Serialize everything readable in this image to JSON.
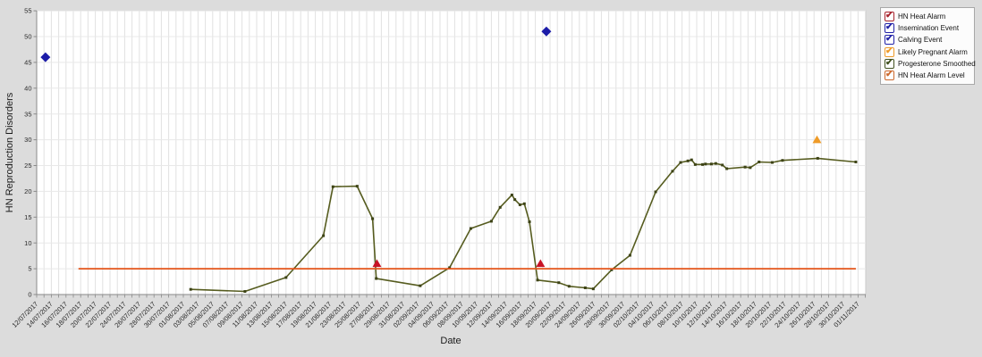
{
  "window": {
    "background": "#dcdcdc",
    "plot_background": "#ffffff"
  },
  "legend": {
    "items": [
      {
        "label": "HN Heat Alarm",
        "checked": true,
        "color": "#a8242e"
      },
      {
        "label": "Insemination Event",
        "checked": true,
        "color": "#2323a8"
      },
      {
        "label": "Calving Event",
        "checked": true,
        "color": "#2323a8"
      },
      {
        "label": "Likely Pregnant Alarm",
        "checked": true,
        "color": "#ef9b28"
      },
      {
        "label": "Progesterone Smoothed",
        "checked": true,
        "color": "#41511f"
      },
      {
        "label": "HN Heat Alarm Level",
        "checked": true,
        "color": "#cd6a2e"
      }
    ]
  },
  "chart_data": {
    "type": "line",
    "title": "",
    "xlabel": "Date",
    "ylabel": "HN Reproduction Disorders",
    "x_unit": "days since 12/07/2017 (tick labels every 2 days, minor gridline every day)",
    "x_range": [
      0,
      113
    ],
    "ylim": [
      0,
      55
    ],
    "grid": "on",
    "legend_position": "top-right-outside",
    "y_ticks": [
      0,
      5,
      10,
      15,
      20,
      25,
      30,
      35,
      40,
      45,
      50,
      55
    ],
    "x_tick_labels": [
      "12/07/2017",
      "14/07/2017",
      "16/07/2017",
      "18/07/2017",
      "20/07/2017",
      "22/07/2017",
      "24/07/2017",
      "26/07/2017",
      "28/07/2017",
      "30/07/2017",
      "01/08/2017",
      "03/08/2017",
      "05/08/2017",
      "07/08/2017",
      "09/08/2017",
      "11/08/2017",
      "13/08/2017",
      "15/08/2017",
      "17/08/2017",
      "19/08/2017",
      "21/08/2017",
      "23/08/2017",
      "25/08/2017",
      "27/08/2017",
      "29/08/2017",
      "31/08/2017",
      "02/09/2017",
      "04/09/2017",
      "06/09/2017",
      "08/09/2017",
      "10/09/2017",
      "12/09/2017",
      "14/09/2017",
      "16/09/2017",
      "18/09/2017",
      "20/09/2017",
      "22/09/2017",
      "24/09/2017",
      "26/09/2017",
      "28/09/2017",
      "30/09/2017",
      "02/10/2017",
      "04/10/2017",
      "06/10/2017",
      "08/10/2017",
      "10/10/2017",
      "12/10/2017",
      "14/10/2017",
      "16/10/2017",
      "18/10/2017",
      "20/10/2017",
      "22/10/2017",
      "24/10/2017",
      "26/10/2017",
      "28/10/2017",
      "30/10/2017",
      "01/11/2017"
    ],
    "series": [
      {
        "name": "Progesterone Smoothed",
        "type": "line",
        "color": "#565c1f",
        "marker": "dot",
        "marker_color": "#3d4316",
        "points": [
          [
            21,
            1.0
          ],
          [
            28.4,
            0.6
          ],
          [
            34,
            3.3
          ],
          [
            39.1,
            11.4
          ],
          [
            40.4,
            20.9
          ],
          [
            43.7,
            21.0
          ],
          [
            45.8,
            14.7
          ],
          [
            46.3,
            3.1
          ],
          [
            52.3,
            1.7
          ],
          [
            56.3,
            5.2
          ],
          [
            59.2,
            12.8
          ],
          [
            62,
            14.2
          ],
          [
            63.2,
            16.9
          ],
          [
            64.8,
            19.3
          ],
          [
            65.2,
            18.4
          ],
          [
            65.9,
            17.4
          ],
          [
            66.5,
            17.6
          ],
          [
            67.2,
            14.1
          ],
          [
            68.3,
            2.8
          ],
          [
            71.2,
            2.3
          ],
          [
            72.6,
            1.6
          ],
          [
            74.8,
            1.3
          ],
          [
            75.9,
            1.1
          ],
          [
            78.4,
            4.8
          ],
          [
            80.9,
            7.6
          ],
          [
            84.4,
            19.9
          ],
          [
            86.7,
            23.9
          ],
          [
            87.8,
            25.6
          ],
          [
            88.8,
            25.9
          ],
          [
            89.3,
            26.1
          ],
          [
            89.8,
            25.2
          ],
          [
            90.8,
            25.2
          ],
          [
            91.2,
            25.3
          ],
          [
            92,
            25.3
          ],
          [
            92.6,
            25.4
          ],
          [
            93.5,
            25.1
          ],
          [
            94.1,
            24.4
          ],
          [
            96.6,
            24.7
          ],
          [
            97.3,
            24.6
          ],
          [
            98.5,
            25.7
          ],
          [
            100.3,
            25.6
          ],
          [
            101.7,
            26.0
          ],
          [
            106.5,
            26.4
          ],
          [
            111.7,
            25.7
          ]
        ]
      },
      {
        "name": "HN Heat Alarm",
        "type": "scatter",
        "marker": "triangle",
        "color": "#c81326",
        "approx_dates": [
          "27/08/2017",
          "19/09/2017"
        ],
        "points": [
          [
            46.4,
            6
          ],
          [
            68.7,
            6
          ]
        ]
      },
      {
        "name": "Insemination Event",
        "type": "scatter",
        "marker": "diamond",
        "color": "#1c1ca8",
        "approx_dates": [
          "20/09/2017"
        ],
        "points": [
          [
            69.5,
            51
          ]
        ]
      },
      {
        "name": "Calving Event",
        "type": "scatter",
        "marker": "diamond",
        "color": "#1c1ca8",
        "approx_dates": [
          "13/07/2017"
        ],
        "points": [
          [
            1.2,
            46
          ]
        ]
      },
      {
        "name": "Likely Pregnant Alarm",
        "type": "scatter",
        "marker": "triangle",
        "color": "#ef9b28",
        "approx_dates": [
          "26/10/2017"
        ],
        "points": [
          [
            106.4,
            30
          ]
        ]
      },
      {
        "name": "HN Heat Alarm Level",
        "type": "hline",
        "color": "#e4551a",
        "value": 5,
        "x_start": 5.7,
        "x_end": 111.7
      }
    ]
  }
}
